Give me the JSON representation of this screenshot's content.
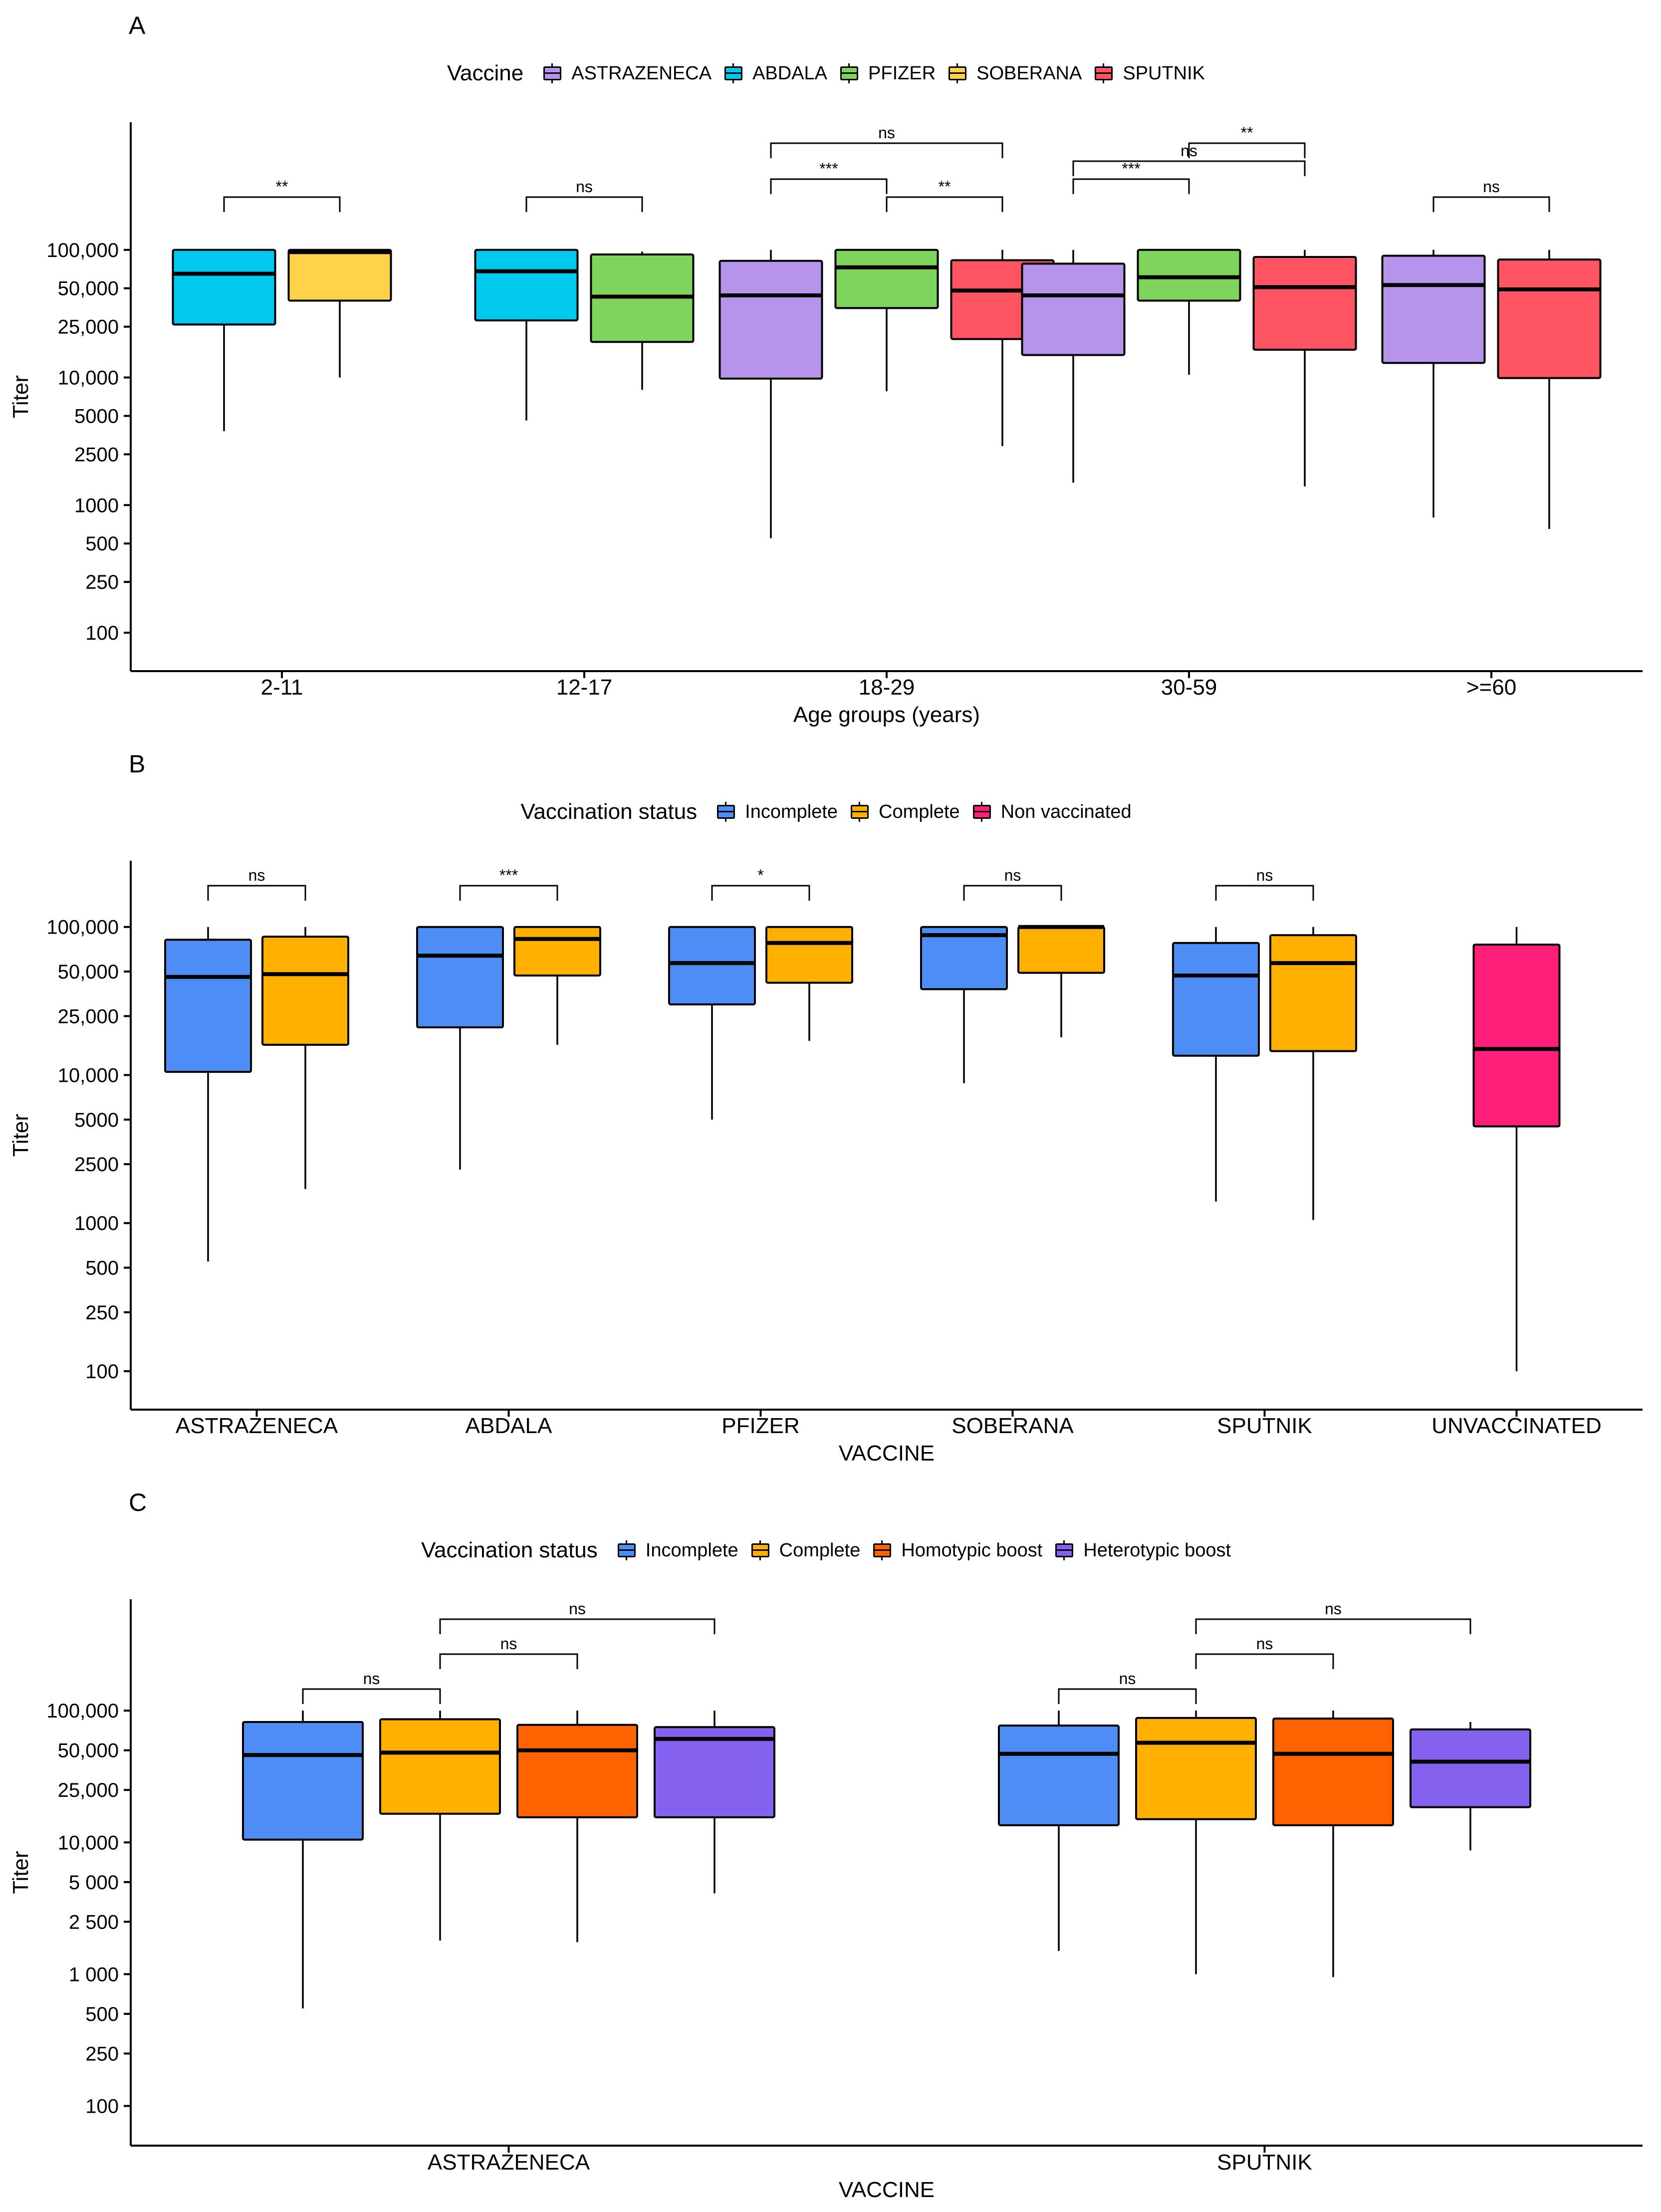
{
  "chart_data": [
    {
      "id": "A",
      "panel_label": "A",
      "type": "boxplot",
      "legend_title": "Vaccine",
      "legend": [
        {
          "label": "ASTRAZENECA",
          "color": "#B794EC"
        },
        {
          "label": "ABDALA",
          "color": "#00C8EE"
        },
        {
          "label": "PFIZER",
          "color": "#7FD45E"
        },
        {
          "label": "SOBERANA",
          "color": "#FFD24A"
        },
        {
          "label": "SPUTNIK",
          "color": "#FF5563"
        }
      ],
      "xlabel": "Age groups (years)",
      "ylabel": "Titer",
      "yscale": "log10",
      "ylim": [
        50,
        1000000
      ],
      "yticks": [
        100,
        250,
        500,
        1000,
        2500,
        5000,
        10000,
        25000,
        50000,
        100000
      ],
      "ytick_labels": [
        "100",
        "250",
        "500",
        "1000",
        "2500",
        "5000",
        "10,000",
        "25,000",
        "50,000",
        "100,000"
      ],
      "categories": [
        "2-11",
        "12-17",
        "18-29",
        "30-59",
        ">=60"
      ],
      "groups": [
        {
          "category": "2-11",
          "boxes": [
            {
              "series": "ABDALA",
              "color": "#00C8EE",
              "min": 3800,
              "q1": 26000,
              "median": 65000,
              "q3": 100000,
              "max": 100000
            },
            {
              "series": "SOBERANA",
              "color": "#FFD24A",
              "min": 10000,
              "q1": 40000,
              "median": 96000,
              "q3": 100000,
              "max": 100000
            }
          ]
        },
        {
          "category": "12-17",
          "boxes": [
            {
              "series": "ABDALA",
              "color": "#00C8EE",
              "min": 4600,
              "q1": 28000,
              "median": 68000,
              "q3": 100000,
              "max": 100000
            },
            {
              "series": "PFIZER",
              "color": "#7FD45E",
              "min": 8000,
              "q1": 19000,
              "median": 43000,
              "q3": 92000,
              "max": 97000
            }
          ]
        },
        {
          "category": "18-29",
          "boxes": [
            {
              "series": "ASTRAZENECA",
              "color": "#B794EC",
              "min": 550,
              "q1": 9800,
              "median": 44000,
              "q3": 82000,
              "max": 100000
            },
            {
              "series": "PFIZER",
              "color": "#7FD45E",
              "min": 7800,
              "q1": 35000,
              "median": 73000,
              "q3": 100000,
              "max": 100000
            },
            {
              "series": "SPUTNIK",
              "color": "#FF5563",
              "min": 2900,
              "q1": 20000,
              "median": 48000,
              "q3": 83000,
              "max": 100000
            }
          ]
        },
        {
          "category": "30-59",
          "boxes": [
            {
              "series": "ASTRAZENECA",
              "color": "#B794EC",
              "min": 1500,
              "q1": 15000,
              "median": 44000,
              "q3": 78000,
              "max": 100000
            },
            {
              "series": "PFIZER",
              "color": "#7FD45E",
              "min": 10500,
              "q1": 40000,
              "median": 61000,
              "q3": 100000,
              "max": 100000
            },
            {
              "series": "SPUTNIK",
              "color": "#FF5563",
              "min": 1400,
              "q1": 16500,
              "median": 51000,
              "q3": 88000,
              "max": 100000
            }
          ]
        },
        {
          "category": ">=60",
          "boxes": [
            {
              "series": "ASTRAZENECA",
              "color": "#B794EC",
              "min": 800,
              "q1": 13000,
              "median": 53000,
              "q3": 90000,
              "max": 100000
            },
            {
              "series": "SPUTNIK",
              "color": "#FF5563",
              "min": 650,
              "q1": 9900,
              "median": 49000,
              "q3": 84000,
              "max": 100000
            }
          ]
        }
      ],
      "significance": [
        {
          "group": 0,
          "from": 0,
          "to": 1,
          "level": 0,
          "label": "**"
        },
        {
          "group": 1,
          "from": 0,
          "to": 1,
          "level": 0,
          "label": "ns"
        },
        {
          "group": 2,
          "from": 0,
          "to": 1,
          "level": 1,
          "label": "***"
        },
        {
          "group": 2,
          "from": 1,
          "to": 2,
          "level": 0,
          "label": "**"
        },
        {
          "group": 2,
          "from": 0,
          "to": 2,
          "level": 3,
          "label": "ns"
        },
        {
          "group": 3,
          "from": 0,
          "to": 1,
          "level": 1,
          "label": "***"
        },
        {
          "group": 3,
          "from": 0,
          "to": 2,
          "level": 2,
          "label": "ns"
        },
        {
          "group": 3,
          "from": 1,
          "to": 2,
          "level": 3,
          "label": "**"
        },
        {
          "group": 4,
          "from": 0,
          "to": 1,
          "level": 0,
          "label": "ns"
        }
      ]
    },
    {
      "id": "B",
      "panel_label": "B",
      "type": "boxplot",
      "legend_title": "Vaccination status",
      "legend": [
        {
          "label": "Incomplete",
          "color": "#4C8DF6"
        },
        {
          "label": "Complete",
          "color": "#FFB000"
        },
        {
          "label": "Non vaccinated",
          "color": "#FF1F7A"
        }
      ],
      "xlabel": "VACCINE",
      "ylabel": "Titer",
      "yscale": "log10",
      "ylim": [
        55,
        280000
      ],
      "yticks": [
        100,
        250,
        500,
        1000,
        2500,
        5000,
        10000,
        25000,
        50000,
        100000
      ],
      "ytick_labels": [
        "100",
        "250",
        "500",
        "1000",
        "2500",
        "5000",
        "10,000",
        "25,000",
        "50,000",
        "100,000"
      ],
      "categories": [
        "ASTRAZENECA",
        "ABDALA",
        "PFIZER",
        "SOBERANA",
        "SPUTNIK",
        "UNVACCINATED"
      ],
      "groups": [
        {
          "category": "ASTRAZENECA",
          "boxes": [
            {
              "series": "Incomplete",
              "color": "#4C8DF6",
              "min": 550,
              "q1": 10500,
              "median": 46000,
              "q3": 82000,
              "max": 100000
            },
            {
              "series": "Complete",
              "color": "#FFB000",
              "min": 1700,
              "q1": 16000,
              "median": 48000,
              "q3": 86000,
              "max": 100000
            }
          ]
        },
        {
          "category": "ABDALA",
          "boxes": [
            {
              "series": "Incomplete",
              "color": "#4C8DF6",
              "min": 2300,
              "q1": 21000,
              "median": 64000,
              "q3": 100000,
              "max": 100000
            },
            {
              "series": "Complete",
              "color": "#FFB000",
              "min": 16000,
              "q1": 47000,
              "median": 83000,
              "q3": 100000,
              "max": 100000
            }
          ]
        },
        {
          "category": "PFIZER",
          "boxes": [
            {
              "series": "Incomplete",
              "color": "#4C8DF6",
              "min": 5000,
              "q1": 30000,
              "median": 57000,
              "q3": 100000,
              "max": 100000
            },
            {
              "series": "Complete",
              "color": "#FFB000",
              "min": 17000,
              "q1": 42000,
              "median": 78000,
              "q3": 100000,
              "max": 100000
            }
          ]
        },
        {
          "category": "SOBERANA",
          "boxes": [
            {
              "series": "Incomplete",
              "color": "#4C8DF6",
              "min": 8800,
              "q1": 38000,
              "median": 88000,
              "q3": 100000,
              "max": 100000
            },
            {
              "series": "Complete",
              "color": "#FFB000",
              "min": 18000,
              "q1": 49000,
              "median": 100000,
              "q3": 100000,
              "max": 100000
            }
          ]
        },
        {
          "category": "SPUTNIK",
          "boxes": [
            {
              "series": "Incomplete",
              "color": "#4C8DF6",
              "min": 1400,
              "q1": 13500,
              "median": 47000,
              "q3": 78000,
              "max": 100000
            },
            {
              "series": "Complete",
              "color": "#FFB000",
              "min": 1050,
              "q1": 14500,
              "median": 57000,
              "q3": 88000,
              "max": 100000
            }
          ]
        },
        {
          "category": "UNVACCINATED",
          "boxes": [
            {
              "series": "Non vaccinated",
              "color": "#FF1F7A",
              "min": 100,
              "q1": 4500,
              "median": 15000,
              "q3": 76000,
              "max": 100000
            }
          ]
        }
      ],
      "significance": [
        {
          "group": 0,
          "from": 0,
          "to": 1,
          "level": 0,
          "label": "ns"
        },
        {
          "group": 1,
          "from": 0,
          "to": 1,
          "level": 0,
          "label": "***"
        },
        {
          "group": 2,
          "from": 0,
          "to": 1,
          "level": 0,
          "label": "*"
        },
        {
          "group": 3,
          "from": 0,
          "to": 1,
          "level": 0,
          "label": "ns"
        },
        {
          "group": 4,
          "from": 0,
          "to": 1,
          "level": 0,
          "label": "ns"
        }
      ]
    },
    {
      "id": "C",
      "panel_label": "C",
      "type": "boxplot",
      "legend_title": "Vaccination status",
      "legend": [
        {
          "label": "Incomplete",
          "color": "#4C8DF6"
        },
        {
          "label": "Complete",
          "color": "#FFB000"
        },
        {
          "label": "Homotypic boost",
          "color": "#FF6200"
        },
        {
          "label": "Heterotypic boost",
          "color": "#8561F0"
        }
      ],
      "xlabel": "VACCINE",
      "ylabel": "Titer",
      "yscale": "log10",
      "ylim": [
        50,
        700000
      ],
      "yticks": [
        100,
        250,
        500,
        1000,
        2500,
        5000,
        10000,
        25000,
        50000,
        100000
      ],
      "ytick_labels": [
        "100",
        "250",
        "500",
        "1 000",
        "2 500",
        "5 000",
        "10,000",
        "25,000",
        "50,000",
        "100,000"
      ],
      "categories": [
        "ASTRAZENECA",
        "SPUTNIK"
      ],
      "groups": [
        {
          "category": "ASTRAZENECA",
          "boxes": [
            {
              "series": "Incomplete",
              "color": "#4C8DF6",
              "min": 550,
              "q1": 10500,
              "median": 46000,
              "q3": 82000,
              "max": 100000
            },
            {
              "series": "Complete",
              "color": "#FFB000",
              "min": 1800,
              "q1": 16500,
              "median": 48000,
              "q3": 86000,
              "max": 100000
            },
            {
              "series": "Homotypic boost",
              "color": "#FF6200",
              "min": 1750,
              "q1": 15500,
              "median": 50000,
              "q3": 78000,
              "max": 100000
            },
            {
              "series": "Heterotypic boost",
              "color": "#8561F0",
              "min": 4100,
              "q1": 15500,
              "median": 61000,
              "q3": 75000,
              "max": 100000
            }
          ]
        },
        {
          "category": "SPUTNIK",
          "boxes": [
            {
              "series": "Incomplete",
              "color": "#4C8DF6",
              "min": 1500,
              "q1": 13500,
              "median": 47000,
              "q3": 77000,
              "max": 100000
            },
            {
              "series": "Complete",
              "color": "#FFB000",
              "min": 1000,
              "q1": 15000,
              "median": 57000,
              "q3": 88000,
              "max": 100000
            },
            {
              "series": "Homotypic boost",
              "color": "#FF6200",
              "min": 950,
              "q1": 13500,
              "median": 47000,
              "q3": 87000,
              "max": 100000
            },
            {
              "series": "Heterotypic boost",
              "color": "#8561F0",
              "min": 8700,
              "q1": 18500,
              "median": 41000,
              "q3": 72000,
              "max": 82000
            }
          ]
        }
      ],
      "significance": [
        {
          "group": 0,
          "from": 0,
          "to": 1,
          "level": 0,
          "label": "ns"
        },
        {
          "group": 0,
          "from": 1,
          "to": 2,
          "level": 1,
          "label": "ns"
        },
        {
          "group": 0,
          "from": 1,
          "to": 3,
          "level": 2,
          "label": "ns"
        },
        {
          "group": 1,
          "from": 0,
          "to": 1,
          "level": 0,
          "label": "ns"
        },
        {
          "group": 1,
          "from": 1,
          "to": 2,
          "level": 1,
          "label": "ns"
        },
        {
          "group": 1,
          "from": 1,
          "to": 3,
          "level": 2,
          "label": "ns"
        }
      ]
    }
  ]
}
